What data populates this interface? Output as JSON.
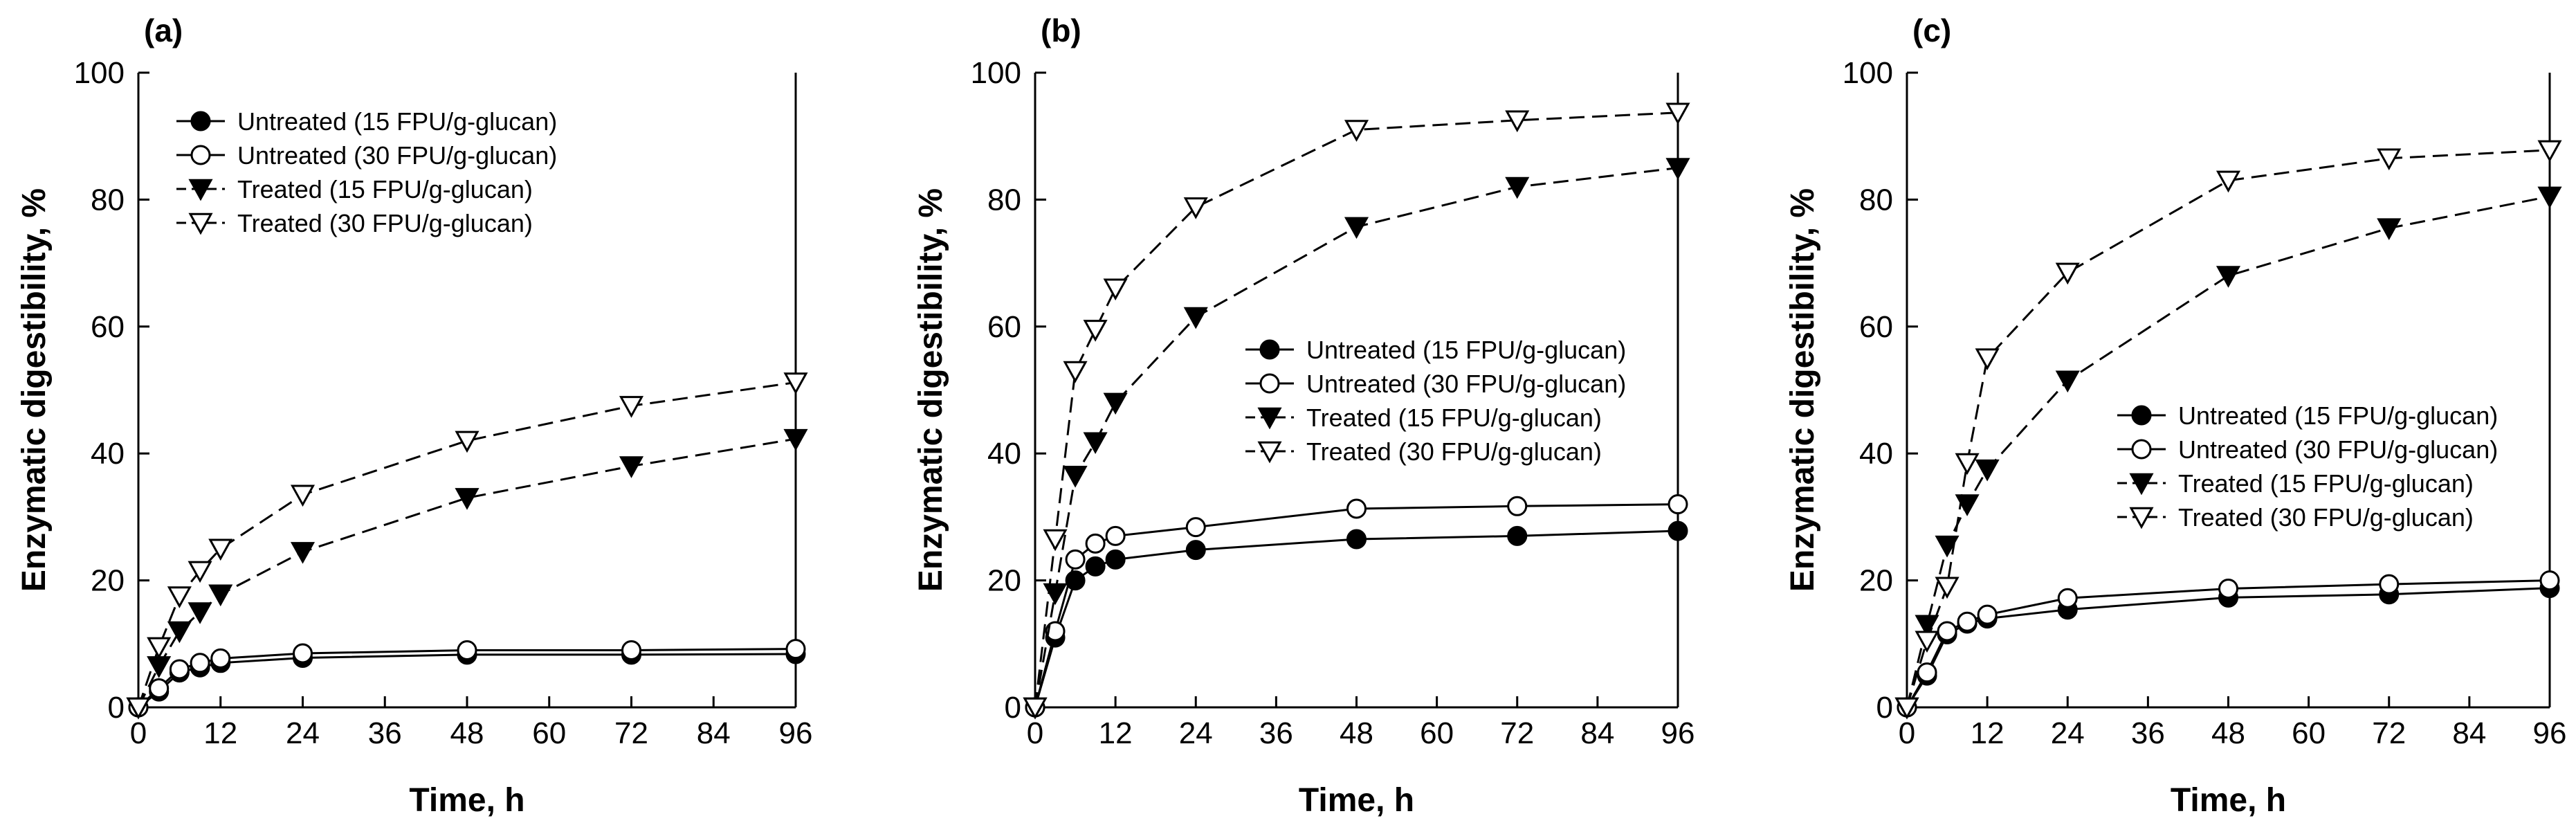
{
  "figure": {
    "colors": {
      "axis": "#000000",
      "marker_fill_filled": "#000000",
      "marker_fill_open": "#ffffff"
    }
  },
  "chart_data": [
    {
      "type": "line",
      "panel_label": "(a)",
      "xlabel": "Time, h",
      "ylabel": "Enzymatic digestibility, %",
      "xlim": [
        0,
        96
      ],
      "ylim": [
        0,
        100
      ],
      "xticks": [
        "0",
        "12",
        "24",
        "36",
        "48",
        "60",
        "72",
        "84",
        "96"
      ],
      "yticks": [
        "0",
        "20",
        "40",
        "60",
        "80",
        "100"
      ],
      "legend_position": "top-left",
      "x": [
        0,
        3,
        6,
        9,
        12,
        24,
        48,
        72,
        96
      ],
      "series": [
        {
          "name": "Untreated (15 FPU/g-glucan)",
          "marker": "filled-circle",
          "line": "solid",
          "values": [
            0,
            2.5,
            5.5,
            6.3,
            7.0,
            7.8,
            8.3,
            8.3,
            8.4
          ]
        },
        {
          "name": "Untreated (30 FPU/g-glucan)",
          "marker": "open-circle",
          "line": "solid",
          "values": [
            0,
            3.0,
            6.0,
            7.0,
            7.7,
            8.5,
            9.0,
            9.0,
            9.2
          ]
        },
        {
          "name": "Treated (15 FPU/g-glucan)",
          "marker": "filled-triangle-down",
          "line": "dashed",
          "values": [
            0,
            6.5,
            12.0,
            15.0,
            17.8,
            24.5,
            33.0,
            38.0,
            42.3
          ]
        },
        {
          "name": "Treated (30 FPU/g-glucan)",
          "marker": "open-triangle-down",
          "line": "dashed",
          "values": [
            0,
            9.5,
            17.5,
            21.5,
            25.0,
            33.5,
            42.0,
            47.5,
            51.2
          ]
        }
      ]
    },
    {
      "type": "line",
      "panel_label": "(b)",
      "xlabel": "Time, h",
      "ylabel": "Enzymatic digestibility, %",
      "xlim": [
        0,
        96
      ],
      "ylim": [
        0,
        100
      ],
      "xticks": [
        "0",
        "12",
        "24",
        "36",
        "48",
        "60",
        "72",
        "84",
        "96"
      ],
      "yticks": [
        "0",
        "20",
        "40",
        "60",
        "80",
        "100"
      ],
      "legend_position": "center-right",
      "x": [
        0,
        3,
        6,
        9,
        12,
        24,
        48,
        72,
        96
      ],
      "series": [
        {
          "name": "Untreated (15 FPU/g-glucan)",
          "marker": "filled-circle",
          "line": "solid",
          "values": [
            0,
            11.0,
            20.0,
            22.2,
            23.3,
            24.8,
            26.5,
            27.0,
            27.8
          ]
        },
        {
          "name": "Untreated (30 FPU/g-glucan)",
          "marker": "open-circle",
          "line": "solid",
          "values": [
            0,
            12.0,
            23.3,
            25.8,
            27.0,
            28.4,
            31.3,
            31.7,
            32.0
          ]
        },
        {
          "name": "Treated (15 FPU/g-glucan)",
          "marker": "filled-triangle-down",
          "line": "dashed",
          "values": [
            0,
            18.0,
            36.5,
            41.8,
            48.0,
            61.5,
            75.7,
            82.0,
            85.0
          ]
        },
        {
          "name": "Treated (30 FPU/g-glucan)",
          "marker": "open-triangle-down",
          "line": "dashed",
          "values": [
            0,
            26.5,
            53.0,
            59.5,
            66.0,
            78.8,
            91.0,
            92.5,
            93.7
          ]
        }
      ]
    },
    {
      "type": "line",
      "panel_label": "(c)",
      "xlabel": "Time, h",
      "ylabel": "Enzymatic digestibility, %",
      "xlim": [
        0,
        96
      ],
      "ylim": [
        0,
        100
      ],
      "xticks": [
        "0",
        "12",
        "24",
        "36",
        "48",
        "60",
        "72",
        "84",
        "96"
      ],
      "yticks": [
        "0",
        "20",
        "40",
        "60",
        "80",
        "100"
      ],
      "legend_position": "lower-right",
      "x": [
        0,
        3,
        6,
        9,
        12,
        24,
        48,
        72,
        96
      ],
      "series": [
        {
          "name": "Untreated (15 FPU/g-glucan)",
          "marker": "filled-circle",
          "line": "solid",
          "values": [
            0,
            5.0,
            11.5,
            13.2,
            14.0,
            15.4,
            17.3,
            17.8,
            18.8
          ]
        },
        {
          "name": "Untreated (30 FPU/g-glucan)",
          "marker": "open-circle",
          "line": "solid",
          "values": [
            0,
            5.5,
            12.0,
            13.5,
            14.6,
            17.2,
            18.7,
            19.4,
            20.0
          ]
        },
        {
          "name": "Treated (15 FPU/g-glucan)",
          "marker": "filled-triangle-down",
          "line": "dashed",
          "values": [
            0,
            13.0,
            25.5,
            32.0,
            37.5,
            51.5,
            68.0,
            75.5,
            80.5
          ]
        },
        {
          "name": "Treated (30 FPU/g-glucan)",
          "marker": "open-triangle-down",
          "line": "dashed",
          "values": [
            0,
            10.5,
            19.0,
            38.5,
            55.0,
            68.5,
            83.0,
            86.5,
            87.8
          ]
        }
      ]
    }
  ]
}
